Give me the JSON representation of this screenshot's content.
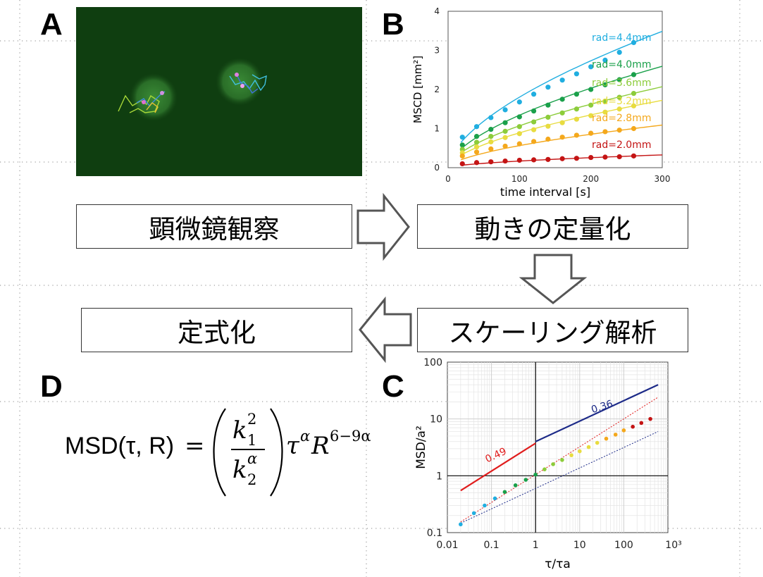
{
  "panels": {
    "a": "A",
    "b": "B",
    "c": "C",
    "d": "D"
  },
  "flow": {
    "step1": "顕微鏡観察",
    "step2": "動きの定量化",
    "step3": "スケーリング解析",
    "step4": "定式化"
  },
  "formula": {
    "lhs": "MSD(τ, R)",
    "eq": "=",
    "num": "k",
    "num_sub": "1",
    "num_sup": "2",
    "den": "k",
    "den_sub": "2",
    "den_sup": "α",
    "tau": "τ",
    "alpha": "α",
    "R": "R",
    "R_exp": "6−9α"
  },
  "colors": {
    "micro_bg": "#0f3e10",
    "droplet": "#2e7a2a"
  },
  "chart_data": [
    {
      "type": "scatter",
      "xlabel": "time interval [s]",
      "ylabel": "MSCD [mm²]",
      "xlim": [
        0,
        300
      ],
      "ylim": [
        0,
        4
      ],
      "xticks": [
        "0",
        "100",
        "200",
        "300"
      ],
      "yticks": [
        "0",
        "1",
        "2",
        "3",
        "4"
      ],
      "x": [
        20,
        40,
        60,
        80,
        100,
        120,
        140,
        160,
        180,
        200,
        220,
        240,
        260
      ],
      "series": [
        {
          "name": "rad=4.4mm",
          "color": "#20aee0",
          "values": [
            0.78,
            1.05,
            1.28,
            1.48,
            1.68,
            1.88,
            2.06,
            2.24,
            2.4,
            2.58,
            2.75,
            2.95,
            3.2
          ]
        },
        {
          "name": "rad=4.0mm",
          "color": "#1aa04a",
          "values": [
            0.58,
            0.8,
            0.98,
            1.15,
            1.3,
            1.45,
            1.6,
            1.75,
            1.88,
            2.0,
            2.12,
            2.25,
            2.38
          ]
        },
        {
          "name": "rad=3.6mm",
          "color": "#8ccc3a",
          "values": [
            0.47,
            0.65,
            0.8,
            0.93,
            1.05,
            1.17,
            1.29,
            1.4,
            1.5,
            1.6,
            1.7,
            1.8,
            1.9
          ]
        },
        {
          "name": "rad=3.2mm",
          "color": "#e8dc40",
          "values": [
            0.38,
            0.53,
            0.66,
            0.77,
            0.87,
            0.97,
            1.06,
            1.15,
            1.24,
            1.33,
            1.42,
            1.5,
            1.58
          ]
        },
        {
          "name": "rad=2.8mm",
          "color": "#f4a81c",
          "values": [
            0.3,
            0.4,
            0.48,
            0.55,
            0.61,
            0.67,
            0.73,
            0.78,
            0.83,
            0.88,
            0.92,
            0.96,
            1.0
          ]
        },
        {
          "name": "rad=2.0mm",
          "color": "#c41414",
          "values": [
            0.1,
            0.13,
            0.15,
            0.17,
            0.19,
            0.2,
            0.21,
            0.23,
            0.24,
            0.26,
            0.27,
            0.28,
            0.3
          ]
        }
      ]
    },
    {
      "type": "scatter",
      "xlabel": "τ/τa",
      "ylabel": "MSD/a²",
      "xscale": "log",
      "yscale": "log",
      "xlim": [
        0.01,
        1000
      ],
      "ylim": [
        0.1,
        100
      ],
      "xticks": [
        "0.01",
        "0.1",
        "1",
        "10",
        "100",
        "10³"
      ],
      "yticks": [
        "0.1",
        "1",
        "10",
        "100"
      ],
      "slope_labels": [
        {
          "text": "0.36",
          "color": "#1c2a88"
        },
        {
          "text": "0.49",
          "color": "#e01c1c"
        }
      ],
      "collapse": {
        "x": [
          0.02,
          0.04,
          0.07,
          0.12,
          0.2,
          0.35,
          0.6,
          1,
          1.6,
          2.5,
          4,
          6.5,
          10,
          16,
          25,
          40,
          65,
          100,
          160,
          250,
          400
        ],
        "y": [
          0.14,
          0.22,
          0.3,
          0.4,
          0.52,
          0.68,
          0.85,
          1.05,
          1.3,
          1.6,
          1.9,
          2.3,
          2.7,
          3.2,
          3.8,
          4.5,
          5.3,
          6.3,
          7.3,
          8.5,
          10
        ]
      }
    }
  ]
}
